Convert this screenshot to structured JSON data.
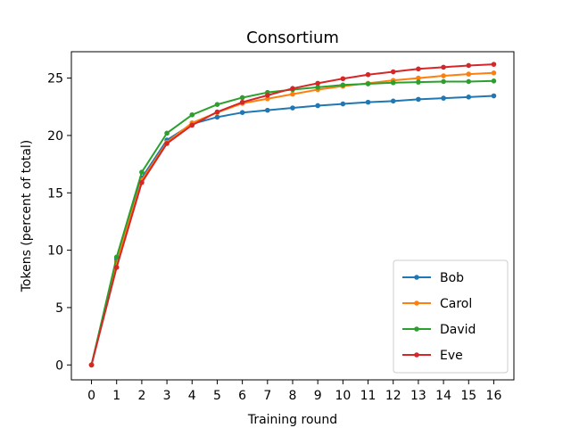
{
  "chart_data": {
    "type": "line",
    "title": "Consortium",
    "xlabel": "Training round",
    "ylabel": "Tokens (percent of total)",
    "x": [
      0,
      1,
      2,
      3,
      4,
      5,
      6,
      7,
      8,
      9,
      10,
      11,
      12,
      13,
      14,
      15,
      16
    ],
    "xlim": [
      -0.8,
      16.8
    ],
    "ylim": [
      -1.3,
      27.3
    ],
    "yticks": [
      0,
      5,
      10,
      15,
      20,
      25
    ],
    "grid": false,
    "legend_position": "lower-right",
    "series": [
      {
        "name": "Bob",
        "color": "#1f77b4",
        "values": [
          0,
          9.2,
          16.3,
          19.6,
          21.0,
          21.6,
          22.0,
          22.2,
          22.4,
          22.6,
          22.75,
          22.9,
          23.0,
          23.15,
          23.25,
          23.35,
          23.45
        ]
      },
      {
        "name": "Carol",
        "color": "#ff7f0e",
        "values": [
          0,
          9.0,
          16.1,
          19.4,
          21.1,
          22.0,
          22.8,
          23.2,
          23.6,
          24.0,
          24.3,
          24.55,
          24.8,
          25.0,
          25.2,
          25.35,
          25.45
        ]
      },
      {
        "name": "David",
        "color": "#2ca02c",
        "values": [
          0,
          9.4,
          16.8,
          20.2,
          21.8,
          22.7,
          23.3,
          23.75,
          24.0,
          24.2,
          24.4,
          24.5,
          24.6,
          24.65,
          24.7,
          24.7,
          24.75
        ]
      },
      {
        "name": "Eve",
        "color": "#d62728",
        "values": [
          0,
          8.5,
          15.9,
          19.3,
          20.9,
          22.05,
          22.9,
          23.5,
          24.1,
          24.55,
          24.95,
          25.3,
          25.55,
          25.8,
          25.95,
          26.1,
          26.2
        ]
      }
    ]
  }
}
